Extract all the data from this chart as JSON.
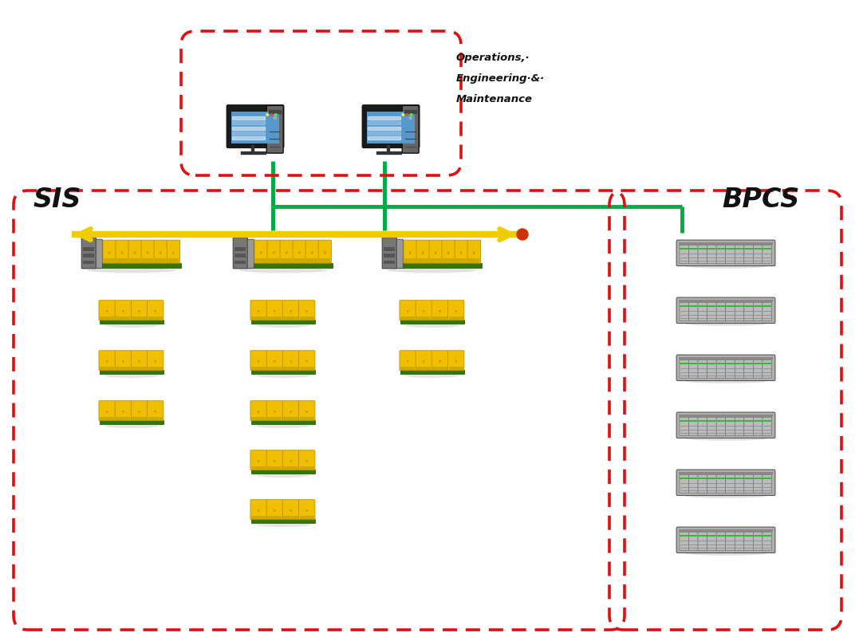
{
  "fig_width": 10.82,
  "fig_height": 7.94,
  "bg_color": "#ffffff",
  "sis_label": "SIS",
  "bpcs_label": "BPCS",
  "ops_line1": "Operations,·",
  "ops_line2": "Engineering·&·",
  "ops_line3": "Maintenance",
  "red_dash_color": "#dd1111",
  "green_line_color": "#00aa44",
  "yellow_bus_color": "#eecc00",
  "sis_yellow": "#f0c000",
  "sis_green_base": "#337700",
  "sis_gray_ctrl": "#777777",
  "sis_dark_yellow": "#c09000",
  "bpcs_chassis_color": "#999999",
  "bpcs_card_color": "#bbbbbb",
  "bpcs_card_dark": "#888888",
  "bpcs_green_accent": "#33bb33",
  "shadow_color": "#aaaaaa",
  "monitor_dark": "#222222",
  "monitor_screen_blue": "#5599cc",
  "monitor_screen_light": "#aaccee",
  "tower_gray": "#666666"
}
